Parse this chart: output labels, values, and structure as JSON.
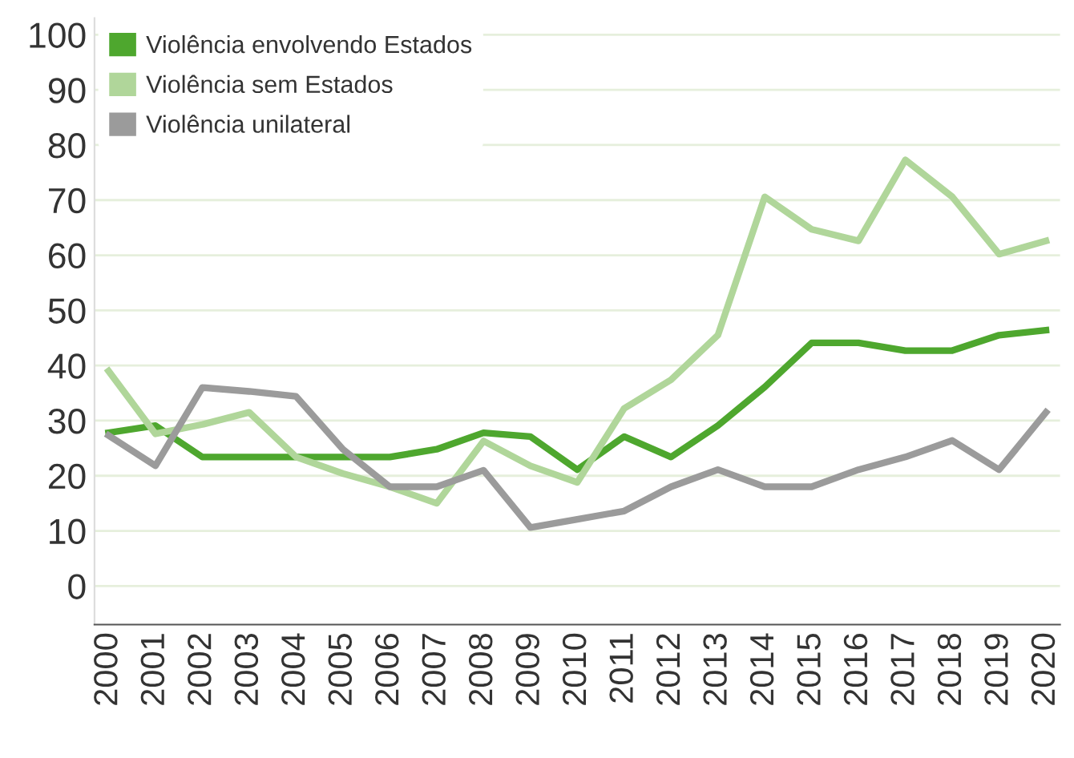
{
  "chart_data": {
    "type": "line",
    "categories": [
      "2000",
      "2001",
      "2002",
      "2003",
      "2004",
      "2005",
      "2006",
      "2007",
      "2008",
      "2009",
      "2010",
      "2011",
      "2012",
      "2013",
      "2014",
      "2015",
      "2016",
      "2017",
      "2018",
      "2019",
      "2020"
    ],
    "series": [
      {
        "name": "Violência envolvendo Estados",
        "color": "#4ea72e",
        "values": [
          27.8,
          29.1,
          23.4,
          23.4,
          23.4,
          23.4,
          23.4,
          24.8,
          27.8,
          27.1,
          21.1,
          27.1,
          23.4,
          29.1,
          36.1,
          44.1,
          44.1,
          42.7,
          42.7,
          45.5,
          46.4
        ]
      },
      {
        "name": "Violência sem Estados",
        "color": "#b0d69a",
        "values": [
          39.0,
          27.6,
          29.3,
          31.5,
          23.4,
          20.4,
          18.0,
          15.0,
          26.3,
          21.8,
          18.8,
          32.2,
          37.4,
          45.5,
          70.6,
          64.7,
          62.6,
          77.3,
          70.6,
          60.2,
          62.6
        ]
      },
      {
        "name": "Violência unilateral",
        "color": "#9b9b9b",
        "values": [
          27.3,
          21.8,
          36.0,
          35.3,
          34.4,
          24.8,
          18.0,
          18.0,
          21.0,
          10.6,
          12.1,
          13.6,
          18.0,
          21.1,
          18.0,
          18.0,
          21.1,
          23.4,
          26.4,
          21.1,
          31.5
        ]
      }
    ],
    "ylim": [
      -7,
      103
    ],
    "yticks": [
      0,
      10,
      20,
      30,
      40,
      50,
      60,
      70,
      80,
      90,
      100
    ],
    "grid": "y",
    "legend": "top left",
    "marker": "none",
    "line_style": "solid"
  }
}
